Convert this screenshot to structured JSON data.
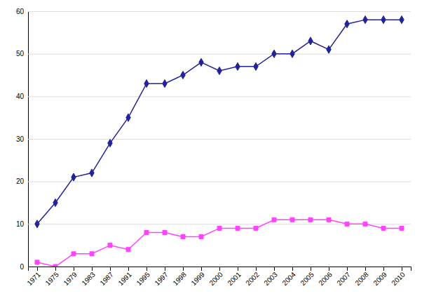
{
  "chart_data": {
    "type": "line",
    "categories": [
      "1971",
      "1975",
      "1979",
      "1983",
      "1987",
      "1991",
      "1995",
      "1997",
      "1998",
      "1999",
      "2000",
      "2001",
      "2002",
      "2003",
      "2004",
      "2005",
      "2006",
      "2007",
      "2008",
      "2009",
      "2010"
    ],
    "series": [
      {
        "color": "#22229A",
        "marker": "diamond",
        "values": [
          10,
          15,
          21,
          22,
          29,
          35,
          43,
          43,
          45,
          48,
          46,
          47,
          47,
          50,
          50,
          53,
          51,
          57,
          58,
          58,
          58
        ]
      },
      {
        "color": "#FF44FF",
        "marker": "square",
        "values": [
          1,
          0,
          3,
          3,
          5,
          4,
          8,
          8,
          7,
          7,
          9,
          9,
          9,
          11,
          11,
          11,
          11,
          10,
          10,
          9,
          9
        ]
      }
    ],
    "ylim": [
      0,
      60
    ],
    "yticks": [
      0,
      10,
      20,
      30,
      40,
      50,
      60
    ],
    "grid": true
  }
}
